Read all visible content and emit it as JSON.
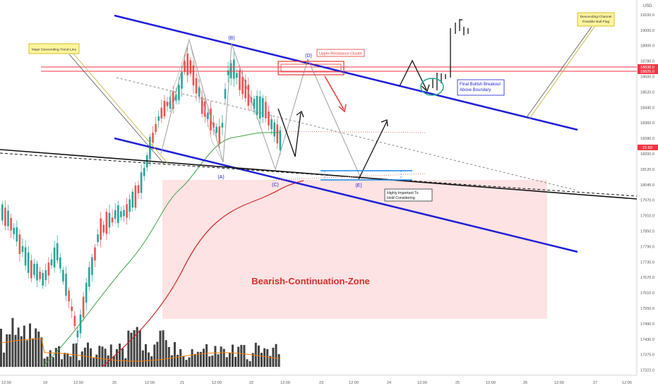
{
  "chart_data": {
    "type": "candlestick",
    "currency": "USD",
    "y_axis": {
      "ticks": [
        "19100.0",
        "19000.0",
        "18900.0",
        "18780.0",
        "18600.0",
        "18520.0",
        "18440.0",
        "18360.0",
        "18280.0",
        "18200.0",
        "18120.0",
        "18045.0",
        "17970.0",
        "17910.0",
        "17850.0",
        "17790.0",
        "17730.0",
        "17670.0",
        "17610.0",
        "17550.0",
        "17490.0",
        "17430.0",
        "17375.0",
        "17322.0"
      ],
      "badges": [
        {
          "label": "18838.0",
          "color": "#f23645",
          "price": 18838
        },
        {
          "label": "18825.0",
          "color": "#f23645",
          "price": 18825
        },
        {
          "label": "21:50",
          "color": "#f23645",
          "price": 18420
        }
      ]
    },
    "x_axis": {
      "ticks": [
        "12:00",
        "19",
        "12:00",
        "20",
        "12:00",
        "21",
        "12:00",
        "22",
        "12:00",
        "23",
        "12:00",
        "24",
        "12:00",
        "25",
        "12:00",
        "26",
        "12:00",
        "27",
        "12:00"
      ]
    },
    "wave_labels": [
      "(B)",
      "(A)",
      "(C)",
      "(D)",
      "(E)"
    ],
    "annotations": {
      "trendline_label": "Major Descending-Trend-Line",
      "channel_note": "Descending-Channel Possible Bull-Flag",
      "resistance_label": "Upper-Resistance-Cluster",
      "breakout_note": "Final Bullish Breakout Above Boundary",
      "support_note": "Highly Important To Hold Considering Bullishness",
      "zone_label": "Bearish-Continuation-Zone"
    },
    "colors": {
      "channel": "#1f1fd6",
      "bull": "#26a69a",
      "bear": "#ef5350",
      "resistance": "#f23645",
      "zone_fill": "#fde0e0",
      "ma_fast": "#43a047",
      "ma_slow": "#c62828",
      "ma_volume": "#f57c00",
      "note_fill": "#fff59d"
    },
    "grid": false,
    "legend": "none"
  }
}
